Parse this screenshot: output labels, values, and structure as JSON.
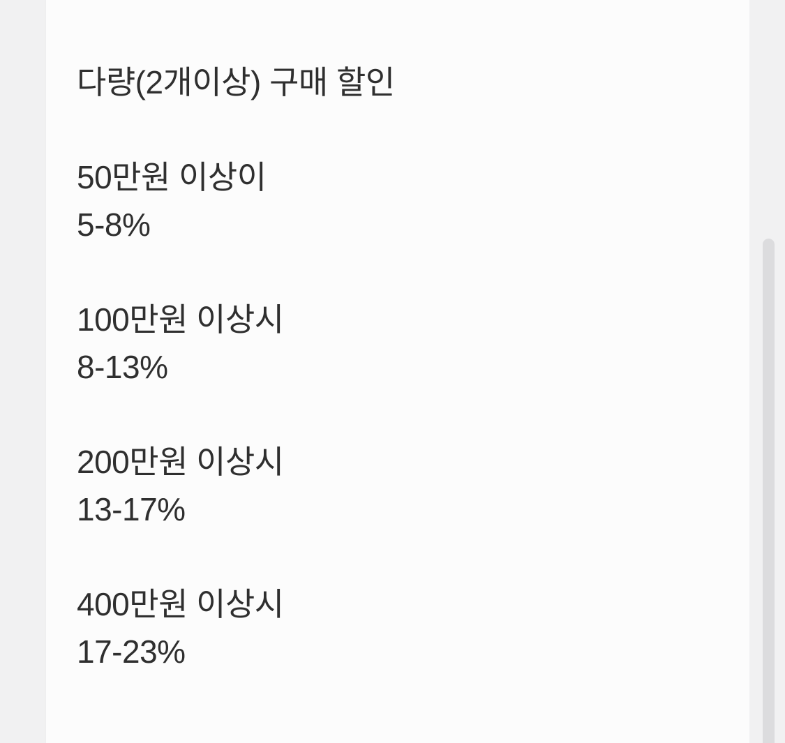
{
  "page": {
    "background_color": "#f2f2f2",
    "content_background_color": "#fcfcfc",
    "text_color": "#2f2f2f",
    "scrollbar_thumb_color": "#dcdcde"
  },
  "content": {
    "title": "다량(2개이상) 구매 할인",
    "tiers": [
      {
        "condition": "50만원 이상이",
        "discount": "5-8%"
      },
      {
        "condition": "100만원 이상시",
        "discount": "8-13%"
      },
      {
        "condition": "200만원 이상시",
        "discount": "13-17%"
      },
      {
        "condition": "400만원 이상시",
        "discount": "17-23%"
      }
    ]
  }
}
